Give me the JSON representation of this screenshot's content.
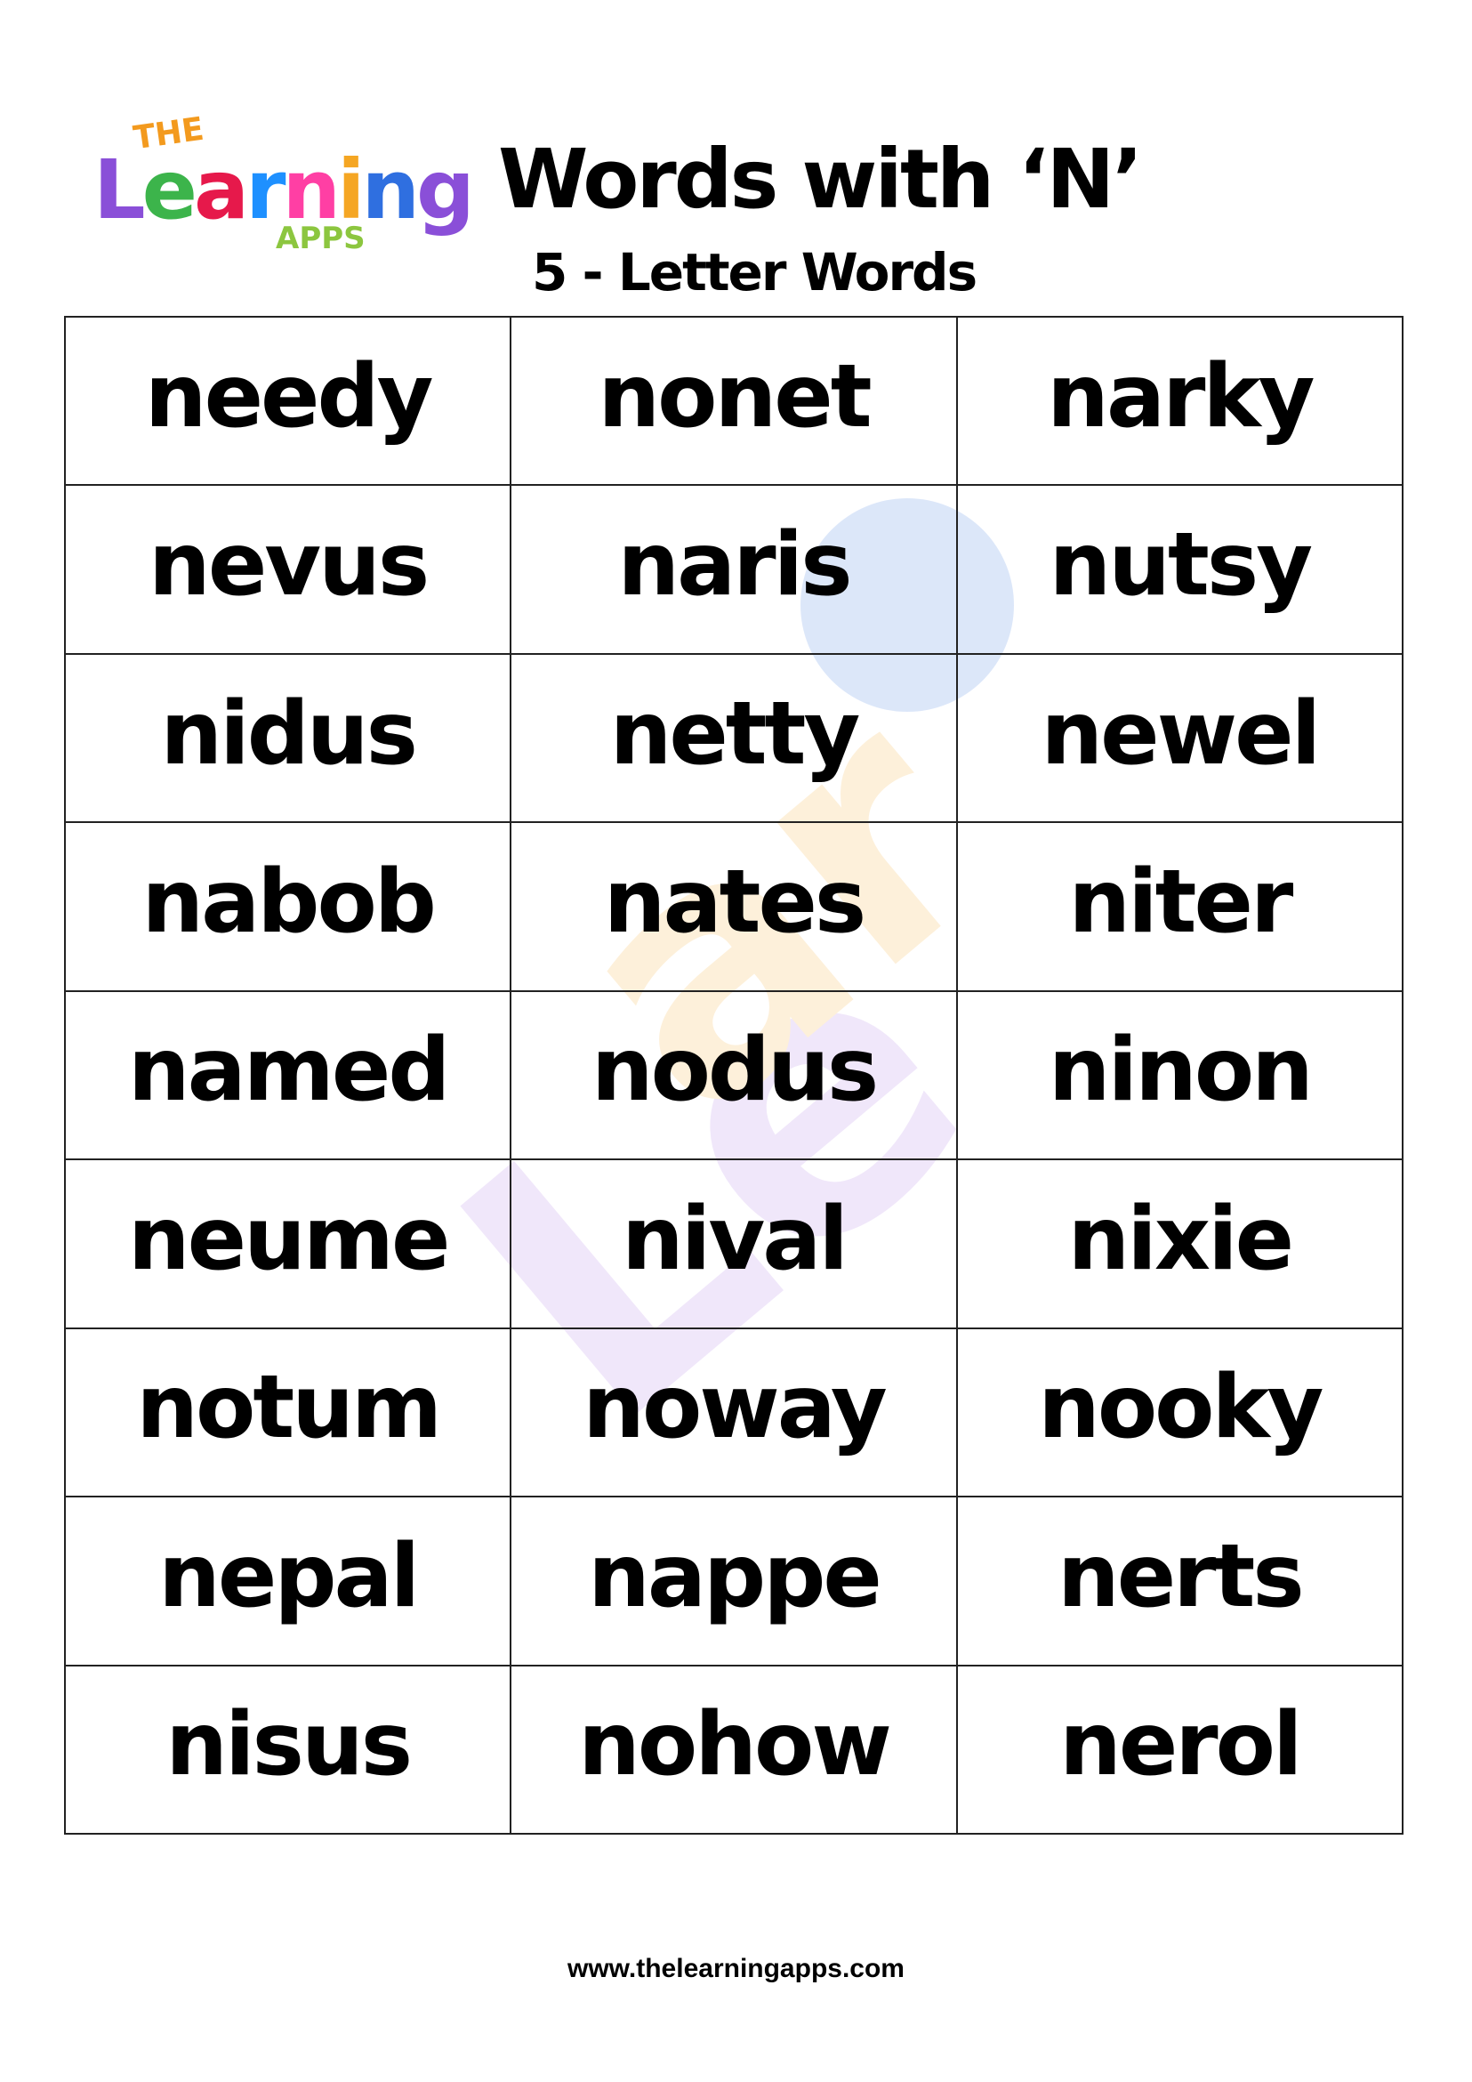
{
  "logo": {
    "the": "THE",
    "learning": "Learning",
    "apps": "APPS"
  },
  "header": {
    "title": "Words with ‘N’",
    "subtitle": "5 - Letter Words"
  },
  "words": [
    [
      "needy",
      "nonet",
      "narky"
    ],
    [
      "nevus",
      "naris",
      "nutsy"
    ],
    [
      "nidus",
      "netty",
      "newel"
    ],
    [
      "nabob",
      "nates",
      "niter"
    ],
    [
      "named",
      "nodus",
      "ninon"
    ],
    [
      "neume",
      "nival",
      "nixie"
    ],
    [
      "notum",
      "noway",
      "nooky"
    ],
    [
      "nepal",
      "nappe",
      "nerts"
    ],
    [
      "nisus",
      "nohow",
      "nerol"
    ]
  ],
  "footer": {
    "url": "www.thelearningapps.com"
  },
  "colors": {
    "logo_letters": [
      "#8a4fd8",
      "#3cb44b",
      "#e6194b",
      "#1e90ff",
      "#ff3fa4",
      "#f5a623",
      "#2f6fe0"
    ]
  }
}
